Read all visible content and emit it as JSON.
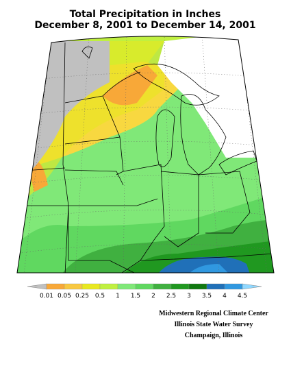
{
  "header": {
    "title": [
      "Total Precipitation in Inches",
      "December 8, 2001 to December 14, 2001"
    ]
  },
  "legend": {
    "breaks": [
      0.01,
      0.05,
      0.25,
      0.5,
      1,
      1.5,
      2,
      2.5,
      3,
      3.5,
      4,
      4.5
    ],
    "colors": [
      "#c0c0c0",
      "#f8a838",
      "#f8c840",
      "#e8e820",
      "#c0f040",
      "#80e878",
      "#60d860",
      "#40b040",
      "#209820",
      "#107810",
      "#2070b8",
      "#3098e0",
      "#50b8f8",
      "#90d8ff"
    ]
  },
  "credits": [
    "Midwestern Regional Climate Center",
    "Illinois State Water Survey",
    "Champaign, Illinois"
  ]
}
